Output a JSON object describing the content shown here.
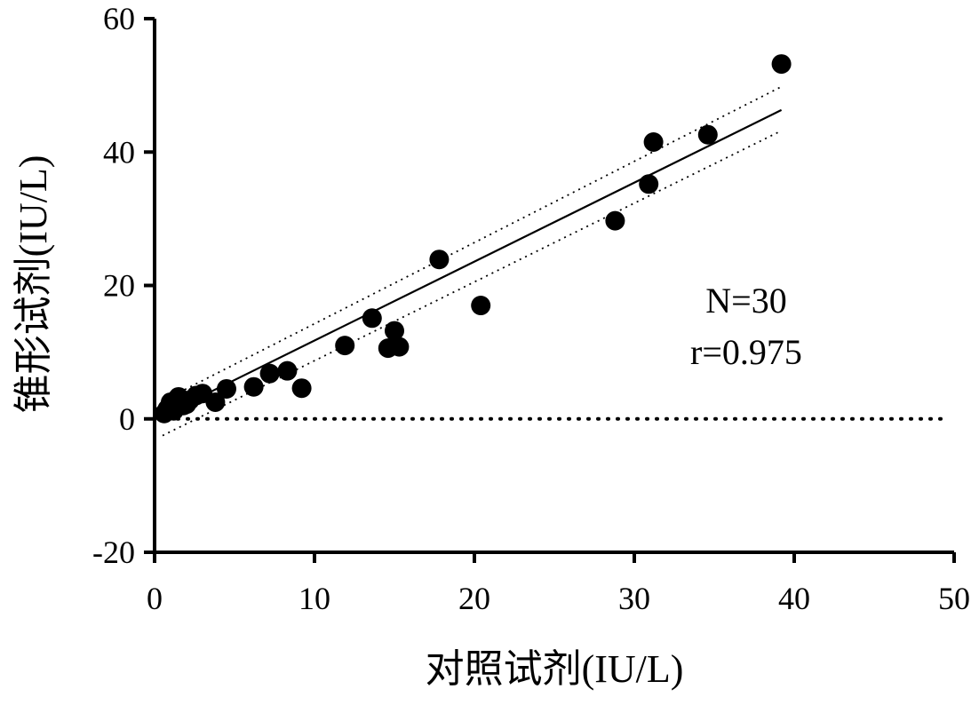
{
  "chart_data": {
    "type": "scatter",
    "title": "",
    "xlabel": "对照试剂(IU/L)",
    "ylabel": "锥形试剂(IU/L)",
    "xlim": [
      0,
      50
    ],
    "ylim": [
      -20,
      60
    ],
    "x_ticks": [
      0,
      10,
      20,
      30,
      40,
      50
    ],
    "y_ticks": [
      -20,
      0,
      20,
      40,
      60
    ],
    "x_tick_labels": [
      "0",
      "10",
      "20",
      "30",
      "40",
      "50"
    ],
    "y_tick_labels": [
      "-20",
      "0",
      "20",
      "40",
      "60"
    ],
    "grid": false,
    "legend": "none",
    "annotations": [
      "N=30",
      "r=0.975"
    ],
    "colors": {
      "points": "#000000",
      "lines": "#000000",
      "background": "#ffffff"
    },
    "series": [
      {
        "kind": "points",
        "x": [
          0.6,
          0.8,
          1.0,
          1.2,
          1.4,
          1.5,
          1.8,
          2.2,
          2.6,
          3.0,
          3.8,
          4.5,
          6.2,
          7.2,
          8.3,
          9.2,
          11.9,
          13.6,
          14.6,
          15.0,
          15.3,
          17.8,
          20.4,
          28.8,
          30.9,
          31.2,
          34.6,
          39.2,
          1.1,
          2.0
        ],
        "y": [
          0.8,
          1.5,
          2.5,
          1.2,
          3.0,
          3.3,
          2.0,
          2.8,
          3.5,
          3.8,
          2.5,
          4.5,
          4.8,
          6.8,
          7.2,
          4.6,
          11.0,
          15.1,
          10.6,
          13.2,
          10.8,
          23.9,
          17.0,
          29.7,
          35.2,
          41.5,
          42.6,
          53.2,
          1.8,
          2.2
        ]
      },
      {
        "kind": "regression",
        "x": [
          0.5,
          39.2
        ],
        "y": [
          0.5,
          46.3
        ]
      },
      {
        "kind": "confidence-upper",
        "x": [
          0.5,
          39.2
        ],
        "y": [
          2.7,
          49.8
        ]
      },
      {
        "kind": "confidence-lower",
        "x": [
          0.5,
          39.2
        ],
        "y": [
          -2.5,
          43.2
        ]
      },
      {
        "kind": "reference-zero",
        "x": [
          0,
          50
        ],
        "y": [
          0,
          0
        ]
      }
    ]
  }
}
